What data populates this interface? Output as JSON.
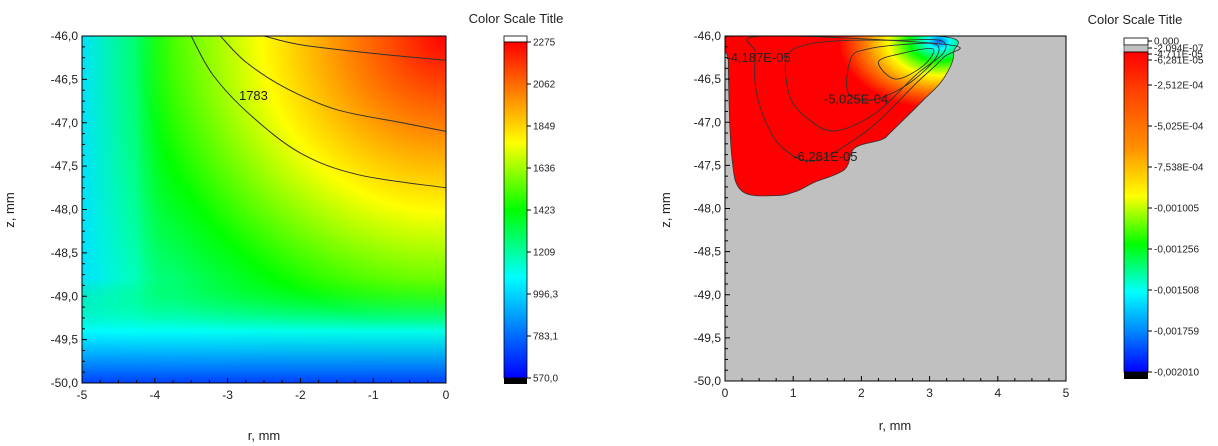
{
  "chart_data": [
    {
      "type": "heatmap",
      "title": "",
      "xlabel": "r, mm",
      "ylabel": "z, mm",
      "xlim": [
        -5,
        0
      ],
      "ylim": [
        -50.0,
        -46.0
      ],
      "x_ticks": [
        "-5",
        "-4",
        "-3",
        "-2",
        "-1",
        "0"
      ],
      "y_ticks": [
        "-46,0",
        "-46,5",
        "-47,0",
        "-47,5",
        "-48,0",
        "-48,5",
        "-49,0",
        "-49,5",
        "-50,0"
      ],
      "colorbar": {
        "title": "Color Scale Title",
        "range": [
          570.0,
          2275
        ],
        "labels": [
          "2275",
          "2062",
          "1849",
          "1636",
          "1423",
          "1209",
          "996,3",
          "783,1",
          "570,0"
        ]
      },
      "contours": [
        {
          "level": 2062,
          "label": "",
          "points": [
            [
              -2.5,
              -46.0
            ],
            [
              -2.0,
              -46.1
            ],
            [
              -1.0,
              -46.2
            ],
            [
              0,
              -46.28
            ]
          ]
        },
        {
          "level": 1849,
          "label": "",
          "points": [
            [
              -3.1,
              -46.0
            ],
            [
              -2.75,
              -46.3
            ],
            [
              -2.2,
              -46.6
            ],
            [
              -1.5,
              -46.85
            ],
            [
              -0.6,
              -47.0
            ],
            [
              0,
              -47.1
            ]
          ]
        },
        {
          "level": 1783,
          "label": "1783",
          "points": [
            [
              -3.5,
              -46.0
            ],
            [
              -3.2,
              -46.45
            ],
            [
              -2.7,
              -46.9
            ],
            [
              -2.0,
              -47.35
            ],
            [
              -1.2,
              -47.6
            ],
            [
              0,
              -47.75
            ]
          ]
        }
      ],
      "data_summary": "Temperature field: highest (~2275) at top-right corner near r=0, z=-46; decreasing toward bottom-left (~570) near r=-5, z=-50; green band along r=-4..-2 and bottom right."
    },
    {
      "type": "heatmap",
      "title": "",
      "xlabel": "r, mm",
      "ylabel": "z, mm",
      "xlim": [
        0,
        5
      ],
      "ylim": [
        -50.0,
        -46.0
      ],
      "x_ticks": [
        "0",
        "1",
        "2",
        "3",
        "4",
        "5"
      ],
      "y_ticks": [
        "-46,0",
        "-46,5",
        "-47,0",
        "-47,5",
        "-48,0",
        "-48,5",
        "-49,0",
        "-49,5",
        "-50,0"
      ],
      "colorbar": {
        "title": "Color Scale Title",
        "range": [
          -0.00201,
          0.0
        ],
        "labels": [
          "0,000",
          "-2,094E-07",
          "-4,711E-05",
          "-6,281E-05",
          "-2,512E-04",
          "-5,025E-04",
          "-7,538E-04",
          "-0,001005",
          "-0,001256",
          "-0,001508",
          "-0,001759",
          "-0,002010"
        ]
      },
      "region_outline": [
        [
          0.1,
          -46.0
        ],
        [
          3.1,
          -46.0
        ],
        [
          3.35,
          -46.2
        ],
        [
          3.2,
          -46.5
        ],
        [
          2.9,
          -46.75
        ],
        [
          2.45,
          -47.1
        ],
        [
          2.3,
          -47.2
        ],
        [
          1.9,
          -47.3
        ],
        [
          1.75,
          -47.55
        ],
        [
          1.3,
          -47.7
        ],
        [
          1.05,
          -47.8
        ],
        [
          0.75,
          -47.85
        ],
        [
          0.25,
          -47.8
        ],
        [
          0.1,
          -47.4
        ],
        [
          0.05,
          -46.3
        ]
      ],
      "contours": [
        {
          "level": -4.187e-05,
          "label": "-4,187E-05",
          "points": [
            [
              0.55,
              -46.0
            ],
            [
              0.45,
              -46.2
            ],
            [
              0.45,
              -46.6
            ],
            [
              0.6,
              -47.0
            ],
            [
              0.85,
              -47.3
            ],
            [
              1.3,
              -47.45
            ],
            [
              1.9,
              -47.2
            ],
            [
              2.3,
              -46.95
            ],
            [
              2.8,
              -46.55
            ],
            [
              3.2,
              -46.25
            ],
            [
              3.25,
              -46.1
            ]
          ]
        },
        {
          "level": -6.281e-05,
          "label": "-6,281E-05",
          "points": [
            [
              0.9,
              -46.25
            ],
            [
              0.95,
              -46.7
            ],
            [
              1.2,
              -46.95
            ],
            [
              1.6,
              -47.1
            ],
            [
              2.2,
              -46.9
            ],
            [
              2.8,
              -46.45
            ],
            [
              3.2,
              -46.2
            ],
            [
              3.15,
              -46.05
            ],
            [
              2.5,
              -46.05
            ],
            [
              1.8,
              -46.05
            ],
            [
              1.2,
              -46.1
            ]
          ]
        },
        {
          "level": -0.0005025,
          "label": "-5,025E-04",
          "points": [
            [
              1.85,
              -46.25
            ],
            [
              1.8,
              -46.65
            ],
            [
              2.1,
              -46.75
            ],
            [
              2.6,
              -46.6
            ],
            [
              3.05,
              -46.3
            ],
            [
              3.1,
              -46.1
            ],
            [
              2.6,
              -46.1
            ],
            [
              2.1,
              -46.15
            ]
          ]
        },
        {
          "level": -0.001005,
          "label": "",
          "points": [
            [
              2.25,
              -46.3
            ],
            [
              2.5,
              -46.5
            ],
            [
              2.9,
              -46.35
            ],
            [
              3.05,
              -46.15
            ],
            [
              2.6,
              -46.2
            ]
          ]
        }
      ],
      "background_color": "#c0c0c0",
      "data_summary": "Field defined only in a region near the top-left (r=0..3.3, z=-46..-47.85); red (~0) across most of region, orange/yellow/green toward r≈3.1, z≈-46.2 minimum near blue; outside region gray."
    }
  ],
  "colors": {
    "colormap": [
      "#ff0000",
      "#ff8000",
      "#ffff00",
      "#00ff00",
      "#00ffff",
      "#0080ff",
      "#0000ff"
    ],
    "background_region": "#c0c0c0"
  }
}
